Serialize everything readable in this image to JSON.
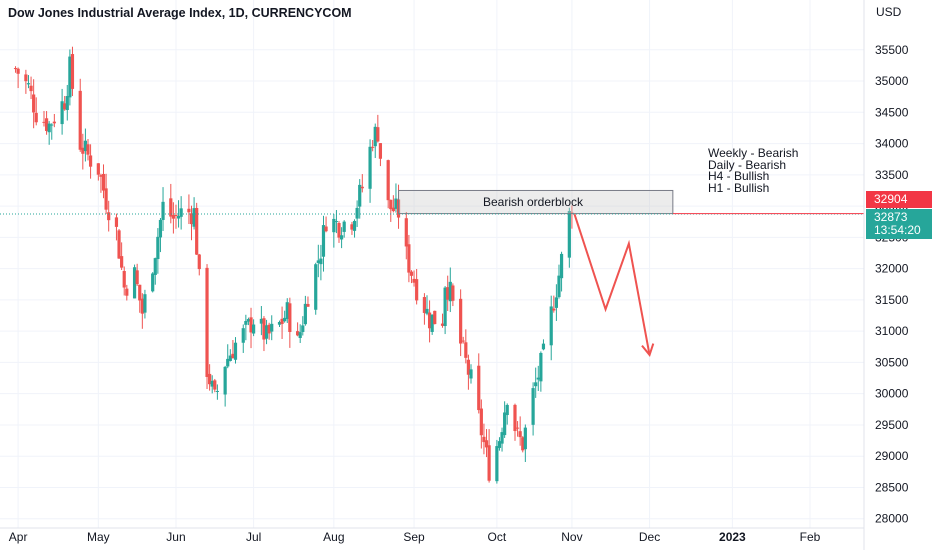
{
  "chart_data": {
    "type": "candlestick",
    "title": "Dow Jones Industrial Average Index, 1D, CURRENCYCOM",
    "currency": "USD",
    "y_ticks": [
      28000,
      28500,
      29000,
      29500,
      30000,
      30500,
      31000,
      31500,
      32000,
      32500,
      33000,
      33500,
      34000,
      34500,
      35000,
      35500
    ],
    "ylim": [
      27900,
      36200
    ],
    "x_ticks": [
      "Apr",
      "May",
      "Jun",
      "Jul",
      "Aug",
      "Sep",
      "Oct",
      "Nov",
      "Dec",
      "2023",
      "Feb"
    ],
    "x_tick_dates": [
      "2022-04-01",
      "2022-05-02",
      "2022-06-01",
      "2022-07-01",
      "2022-08-01",
      "2022-09-01",
      "2022-10-03",
      "2022-11-01",
      "2022-12-01",
      "2023-01-02",
      "2023-02-01"
    ],
    "close_path": [
      [
        "2022-03-31",
        35200
      ],
      [
        "2022-04-05",
        34900
      ],
      [
        "2022-04-08",
        34500
      ],
      [
        "2022-04-13",
        34300
      ],
      [
        "2022-04-19",
        34700
      ],
      [
        "2022-04-21",
        35200
      ],
      [
        "2022-04-25",
        34000
      ],
      [
        "2022-04-28",
        33800
      ],
      [
        "2022-05-02",
        33600
      ],
      [
        "2022-05-05",
        33100
      ],
      [
        "2022-05-09",
        32600
      ],
      [
        "2022-05-12",
        31700
      ],
      [
        "2022-05-16",
        31900
      ],
      [
        "2022-05-19",
        31300
      ],
      [
        "2022-05-24",
        32300
      ],
      [
        "2022-05-27",
        33000
      ],
      [
        "2022-05-31",
        32800
      ],
      [
        "2022-06-03",
        32900
      ],
      [
        "2022-06-08",
        32900
      ],
      [
        "2022-06-10",
        31800
      ],
      [
        "2022-06-13",
        30400
      ],
      [
        "2022-06-16",
        29900
      ],
      [
        "2022-06-20",
        30500
      ],
      [
        "2022-06-24",
        30800
      ],
      [
        "2022-06-28",
        31000
      ],
      [
        "2022-07-01",
        31200
      ],
      [
        "2022-07-06",
        30900
      ],
      [
        "2022-07-11",
        31100
      ],
      [
        "2022-07-14",
        31300
      ],
      [
        "2022-07-18",
        30800
      ],
      [
        "2022-07-22",
        31600
      ],
      [
        "2022-07-27",
        32300
      ],
      [
        "2022-07-29",
        32800
      ],
      [
        "2022-08-03",
        32700
      ],
      [
        "2022-08-08",
        32800
      ],
      [
        "2022-08-12",
        33300
      ],
      [
        "2022-08-16",
        34100
      ],
      [
        "2022-08-18",
        34200
      ],
      [
        "2022-08-19",
        33800
      ],
      [
        "2022-08-22",
        33000
      ],
      [
        "2022-08-26",
        32900
      ],
      [
        "2022-08-29",
        32200
      ],
      [
        "2022-09-02",
        31700
      ],
      [
        "2022-09-07",
        31200
      ],
      [
        "2022-09-12",
        31200
      ],
      [
        "2022-09-13",
        31800
      ],
      [
        "2022-09-15",
        31600
      ],
      [
        "2022-09-19",
        30800
      ],
      [
        "2022-09-23",
        30200
      ],
      [
        "2022-09-26",
        29600
      ],
      [
        "2022-09-28",
        29200
      ],
      [
        "2022-09-30",
        28800
      ],
      [
        "2022-10-04",
        29300
      ],
      [
        "2022-10-07",
        30000
      ],
      [
        "2022-10-11",
        29300
      ],
      [
        "2022-10-13",
        29200
      ],
      [
        "2022-10-17",
        30000
      ],
      [
        "2022-10-21",
        30600
      ],
      [
        "2022-10-25",
        31500
      ],
      [
        "2022-10-27",
        31900
      ],
      [
        "2022-10-31",
        32850
      ],
      [
        "2022-11-01",
        32873
      ]
    ],
    "annotations": {
      "orderblock_label": "Bearish orderblock",
      "orderblock_range": {
        "start": "2022-08-26",
        "end": "2022-12-10",
        "low": 32880,
        "high": 33250
      },
      "notes": [
        "Weekly - Bearish",
        "Daily - Bearish",
        "H4 - Bullish",
        "H1 - Bullish"
      ],
      "projection": [
        [
          "2022-11-02",
          32870
        ],
        [
          "2022-11-14",
          31350
        ],
        [
          "2022-11-23",
          32400
        ],
        [
          "2022-12-01",
          30620
        ]
      ]
    },
    "price_tags": {
      "red_value": "32904",
      "green_value": "32873",
      "green_countdown": "13:54:20"
    },
    "reference_level": 32873,
    "colors": {
      "up": "#26a69a",
      "down": "#ef5350",
      "arrow": "#ef5350",
      "tag_red": "#f23645",
      "tag_green": "#26a69a",
      "grid": "#f0f3fa"
    }
  }
}
